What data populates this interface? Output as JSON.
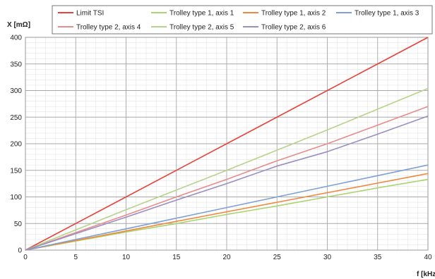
{
  "chart_data": {
    "type": "line",
    "xlabel": "f [kHz]",
    "ylabel": "X [mΩ]",
    "xlim": [
      0,
      40
    ],
    "ylim": [
      0,
      400
    ],
    "x_ticks": [
      "0",
      "5",
      "10",
      "15",
      "20",
      "25",
      "30",
      "35",
      "40"
    ],
    "y_ticks": [
      "0",
      "50",
      "100",
      "150",
      "200",
      "250",
      "300",
      "350",
      "400"
    ],
    "grid": true,
    "legend_position": "top",
    "series": [
      {
        "name": "Limit TSI",
        "color": "#e8403a",
        "x": [
          0,
          40
        ],
        "y": [
          0,
          400
        ]
      },
      {
        "name": "Trolley type 1, axis 1",
        "color": "#a9d46f",
        "x": [
          0,
          5,
          10,
          15,
          20,
          25,
          30,
          35,
          40
        ],
        "y": [
          0,
          17,
          34,
          50,
          67,
          83,
          100,
          117,
          133
        ]
      },
      {
        "name": "Trolley type 1, axis 2",
        "color": "#f0883c",
        "x": [
          0,
          5,
          10,
          15,
          20,
          25,
          30,
          35,
          40
        ],
        "y": [
          0,
          18,
          36,
          54,
          72,
          90,
          108,
          126,
          144
        ]
      },
      {
        "name": "Trolley type 1, axis 3",
        "color": "#7fa0d6",
        "x": [
          0,
          5,
          10,
          15,
          20,
          25,
          30,
          35,
          40
        ],
        "y": [
          0,
          20,
          40,
          60,
          80,
          100,
          120,
          140,
          160
        ]
      },
      {
        "name": "Trolley type 2, axis 4",
        "color": "#e88c8c",
        "x": [
          0,
          5,
          10,
          15,
          20,
          25,
          30,
          35,
          40
        ],
        "y": [
          0,
          33,
          66,
          100,
          133,
          168,
          200,
          235,
          270
        ]
      },
      {
        "name": "Trolley type 2, axis 5",
        "color": "#b6d38a",
        "x": [
          0,
          5,
          10,
          15,
          20,
          25,
          30,
          35,
          40
        ],
        "y": [
          0,
          38,
          76,
          113,
          150,
          188,
          226,
          265,
          304
        ]
      },
      {
        "name": "Trolley type 2, axis 6",
        "color": "#9a8fc2",
        "x": [
          0,
          5,
          10,
          15,
          20,
          25,
          30,
          35,
          40
        ],
        "y": [
          0,
          31,
          62,
          94,
          125,
          158,
          185,
          218,
          252
        ]
      }
    ]
  }
}
